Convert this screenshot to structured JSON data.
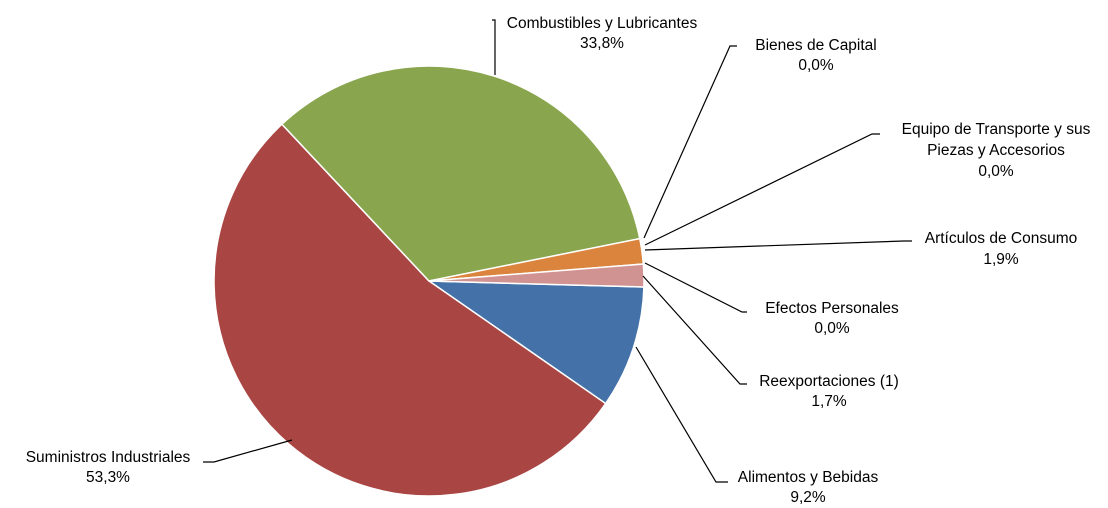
{
  "chart_data": {
    "type": "pie",
    "title": "",
    "legend": "none",
    "slices": [
      {
        "label": "Alimentos y Bebidas",
        "value": 9.2,
        "display": "9,2%",
        "color": "#4472A8"
      },
      {
        "label": "Suministros Industriales",
        "value": 53.3,
        "display": "53,3%",
        "color": "#A94644"
      },
      {
        "label": "Combustibles y Lubricantes",
        "value": 33.8,
        "display": "33,8%",
        "color": "#89A64E"
      },
      {
        "label": "Bienes de Capital",
        "value": 0.0,
        "display": "0,0%",
        "color": "#71588F"
      },
      {
        "label": "Equipo de Transporte y sus Piezas y Accesorios",
        "value": 0.0,
        "display": "0,0%",
        "color": "#4198AF"
      },
      {
        "label": "Artículos de Consumo",
        "value": 1.9,
        "display": "1,9%",
        "color": "#DB843D"
      },
      {
        "label": "Efectos Personales",
        "value": 0.0,
        "display": "0,0%",
        "color": "#93A9CF"
      },
      {
        "label": "Reexportaciones (1)",
        "value": 1.7,
        "display": "1,7%",
        "color": "#D19392"
      }
    ]
  }
}
